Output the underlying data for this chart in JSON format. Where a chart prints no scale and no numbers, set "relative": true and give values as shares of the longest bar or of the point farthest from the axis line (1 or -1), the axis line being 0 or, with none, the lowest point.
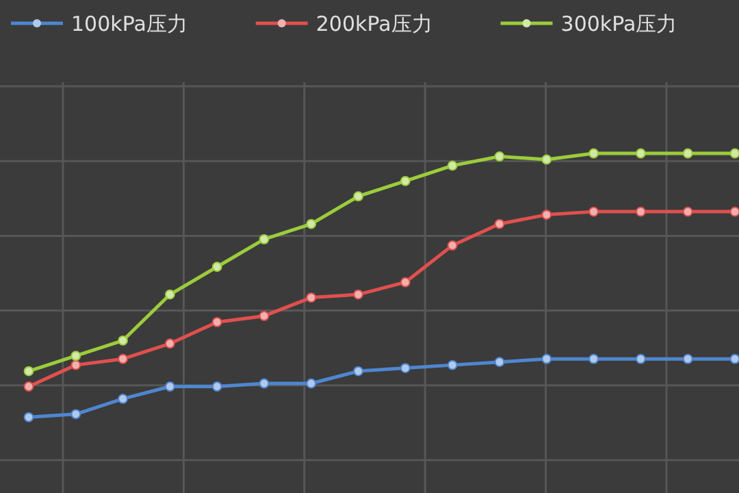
{
  "chart_data": {
    "type": "line",
    "relative": true,
    "grid": true,
    "legend": "top",
    "marker": "circle",
    "line_style": "solid",
    "categories": [
      null,
      null,
      null,
      null,
      null,
      null,
      null,
      null,
      null,
      null,
      null,
      null,
      null,
      null,
      null,
      null
    ],
    "series": [
      {
        "name": "100kPa压力",
        "color": "#4f86d0",
        "values": [
          0.14,
          0.15,
          0.2,
          0.24,
          0.24,
          0.25,
          0.25,
          0.29,
          0.3,
          0.31,
          0.32,
          0.33,
          0.33,
          0.33,
          0.33,
          0.33
        ]
      },
      {
        "name": "200kPa压力",
        "color": "#e0504e",
        "values": [
          0.24,
          0.31,
          0.33,
          0.38,
          0.45,
          0.47,
          0.53,
          0.54,
          0.58,
          0.7,
          0.77,
          0.8,
          0.81,
          0.81,
          0.81,
          0.81
        ]
      },
      {
        "name": "300kPa压力",
        "color": "#9ccc3c",
        "values": [
          0.29,
          0.34,
          0.39,
          0.54,
          0.63,
          0.72,
          0.77,
          0.86,
          0.91,
          0.96,
          0.99,
          0.98,
          1,
          1,
          1,
          1
        ]
      }
    ]
  }
}
